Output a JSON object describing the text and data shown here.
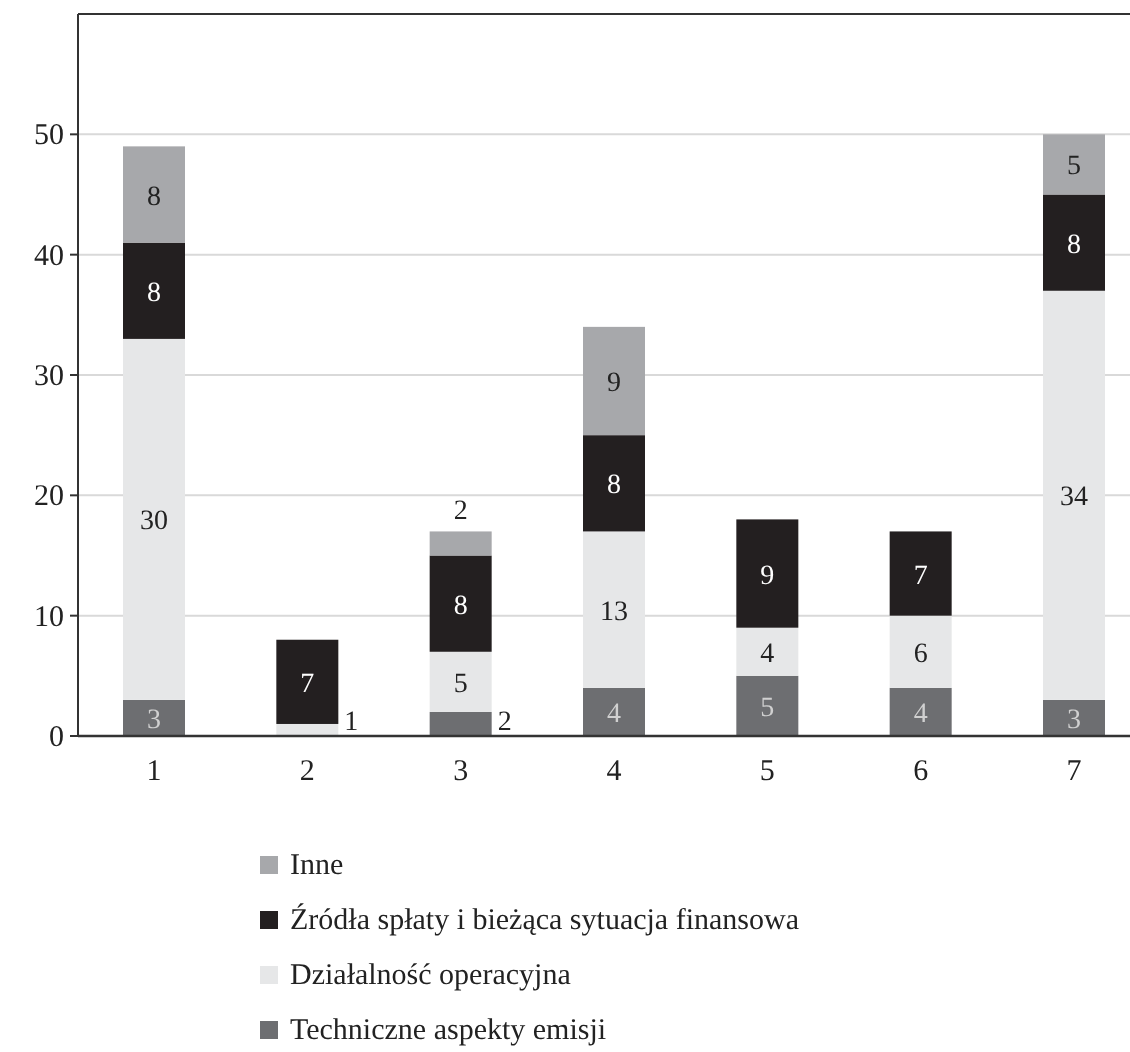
{
  "chart_data": {
    "type": "bar",
    "stacked": true,
    "categories": [
      "1",
      "2",
      "3",
      "4",
      "5",
      "6",
      "7"
    ],
    "series": [
      {
        "name": "Techniczne aspekty emisji",
        "color": "#6d6e71",
        "values": [
          3,
          null,
          2,
          4,
          5,
          4,
          3
        ]
      },
      {
        "name": "Działalność operacyjna",
        "color": "#e6e7e8",
        "values": [
          30,
          1,
          5,
          13,
          4,
          6,
          34
        ]
      },
      {
        "name": "Źródła spłaty i bieżąca sytuacja finansowa",
        "color": "#231f20",
        "values": [
          8,
          7,
          8,
          8,
          9,
          7,
          8
        ]
      },
      {
        "name": "Inne",
        "color": "#a7a8ab",
        "values": [
          8,
          null,
          2,
          9,
          null,
          null,
          5
        ]
      }
    ],
    "ylim": [
      0,
      60
    ],
    "yticks": [
      0,
      10,
      20,
      30,
      40,
      50
    ],
    "grid": "y",
    "legend": "bottom",
    "data_labels": true
  }
}
